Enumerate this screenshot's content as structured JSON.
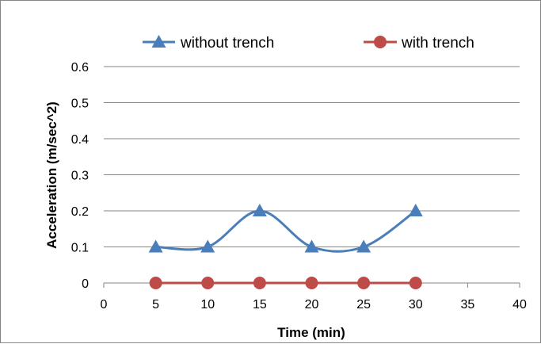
{
  "chart_data": {
    "type": "line",
    "title": "",
    "xlabel": "Time (min)",
    "ylabel": "Acceleration (m/sec^2)",
    "xlim": [
      0,
      40
    ],
    "ylim": [
      0,
      0.6
    ],
    "x_ticks": [
      0,
      5,
      10,
      15,
      20,
      25,
      30,
      35,
      40
    ],
    "y_ticks": [
      0,
      0.1,
      0.2,
      0.3,
      0.4,
      0.5,
      0.6
    ],
    "grid": "horizontal",
    "legend_position": "top",
    "x": [
      5,
      10,
      15,
      20,
      25,
      30
    ],
    "series": [
      {
        "name": "without trench",
        "values": [
          0.1,
          0.1,
          0.2,
          0.1,
          0.1,
          0.2
        ],
        "color": "#4a7ebb",
        "marker": "triangle",
        "smooth": true
      },
      {
        "name": "with trench",
        "values": [
          0,
          0,
          0,
          0,
          0,
          0
        ],
        "color": "#be4b48",
        "marker": "circle",
        "smooth": false
      }
    ]
  }
}
